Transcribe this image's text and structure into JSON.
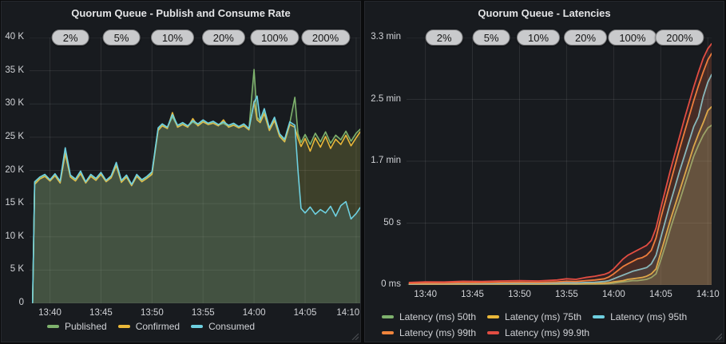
{
  "chart_data": [
    {
      "type": "line",
      "title": "Quorum Queue - Publish and Consume Rate",
      "xlabel": "",
      "ylabel": "",
      "xlim": [
        -2,
        30.4
      ],
      "ylim": [
        0,
        40000
      ],
      "grid": true,
      "legend_position": "bottom",
      "legend_rows": [
        [
          0,
          1,
          2
        ]
      ],
      "fill_opacity": 0.13,
      "line_width": 1.6,
      "x_ticks": [
        {
          "t": 0,
          "label": "13:40"
        },
        {
          "t": 5,
          "label": "13:45"
        },
        {
          "t": 10,
          "label": "13:50"
        },
        {
          "t": 15,
          "label": "13:55"
        },
        {
          "t": 20,
          "label": "14:00"
        },
        {
          "t": 25,
          "label": "14:05"
        },
        {
          "t": 30,
          "label": "14:10"
        }
      ],
      "y_ticks": [
        {
          "v": 0,
          "label": "0"
        },
        {
          "v": 5000,
          "label": "5 K"
        },
        {
          "v": 10000,
          "label": "10 K"
        },
        {
          "v": 15000,
          "label": "15 K"
        },
        {
          "v": 20000,
          "label": "20 K"
        },
        {
          "v": 25000,
          "label": "25 K"
        },
        {
          "v": 30000,
          "label": "30 K"
        },
        {
          "v": 35000,
          "label": "35 K"
        },
        {
          "v": 40000,
          "label": "40 K"
        }
      ],
      "annotations": [
        {
          "t": 2,
          "label": "2%"
        },
        {
          "t": 7,
          "label": "5%"
        },
        {
          "t": 12,
          "label": "10%"
        },
        {
          "t": 17,
          "label": "20%"
        },
        {
          "t": 22,
          "label": "100%"
        },
        {
          "t": 27,
          "label": "200%"
        }
      ],
      "x": [
        -1.7,
        -1.5,
        -1,
        -0.5,
        0,
        0.5,
        1,
        1.5,
        2,
        2.5,
        3,
        3.5,
        4,
        4.5,
        5,
        5.5,
        6,
        6.5,
        7,
        7.5,
        8,
        8.5,
        9,
        9.5,
        10,
        10.3,
        10.6,
        11,
        11.5,
        12,
        12.5,
        13,
        13.5,
        14,
        14.5,
        15,
        15.5,
        16,
        16.5,
        17,
        17.5,
        18,
        18.5,
        19,
        19.5,
        20,
        20.3,
        20.6,
        21,
        21.5,
        22,
        22.5,
        23,
        23.5,
        24,
        24.3,
        24.6,
        25,
        25.5,
        26,
        26.5,
        27,
        27.5,
        28,
        28.5,
        29,
        29.5,
        30,
        30.4
      ],
      "series": [
        {
          "name": "Published",
          "color": "#7EB26D",
          "values": [
            200,
            18100,
            18800,
            19200,
            18500,
            19300,
            18200,
            22800,
            19100,
            18500,
            19600,
            18200,
            19200,
            18600,
            19500,
            18400,
            19000,
            20900,
            18300,
            19100,
            17800,
            19200,
            18400,
            18900,
            19600,
            23200,
            26200,
            26800,
            26400,
            28100,
            26600,
            27000,
            26600,
            27300,
            26800,
            27400,
            27000,
            27200,
            26800,
            27100,
            26600,
            26900,
            26500,
            26800,
            26200,
            35200,
            28000,
            27400,
            28800,
            26200,
            27700,
            25300,
            24500,
            27100,
            31000,
            25500,
            24200,
            25400,
            23900,
            25600,
            24300,
            25800,
            24100,
            25300,
            24600,
            25900,
            24400,
            25600,
            26200
          ]
        },
        {
          "name": "Confirmed",
          "color": "#EAB839",
          "values": [
            0,
            17900,
            18700,
            19100,
            18400,
            19200,
            18100,
            22500,
            19000,
            18400,
            19500,
            18100,
            19100,
            18500,
            19400,
            18300,
            18900,
            20700,
            18200,
            19000,
            17700,
            19100,
            18300,
            18800,
            19400,
            22800,
            26000,
            26700,
            26300,
            28700,
            26500,
            26900,
            26500,
            27800,
            26700,
            27300,
            26900,
            27100,
            26700,
            27600,
            26500,
            26800,
            26400,
            26700,
            26100,
            30400,
            27600,
            27200,
            28500,
            26000,
            27500,
            25100,
            24300,
            26900,
            26500,
            24800,
            23600,
            24800,
            22900,
            24900,
            23500,
            25100,
            23300,
            24700,
            23900,
            25300,
            23700,
            24900,
            25800
          ]
        },
        {
          "name": "Consumed",
          "color": "#6ED0E0",
          "values": [
            100,
            18300,
            19000,
            19400,
            18600,
            19500,
            18400,
            23400,
            19300,
            18700,
            19900,
            18300,
            19400,
            18800,
            19700,
            18500,
            19200,
            21200,
            18500,
            19300,
            17900,
            19400,
            18600,
            19100,
            19800,
            23000,
            26400,
            27000,
            26500,
            28400,
            26800,
            27200,
            26700,
            27500,
            27000,
            27600,
            27100,
            27400,
            26900,
            27300,
            26800,
            27100,
            26600,
            27000,
            26300,
            30200,
            31200,
            27600,
            29300,
            26400,
            28000,
            25500,
            24700,
            27300,
            26800,
            20000,
            14300,
            13600,
            14500,
            13400,
            14100,
            13600,
            14600,
            13100,
            14700,
            15300,
            12700,
            13500,
            14400
          ]
        }
      ]
    },
    {
      "type": "line",
      "title": "Quorum Queue - Latencies",
      "xlabel": "",
      "ylabel": "",
      "xlim": [
        -2,
        30.4
      ],
      "ylim": [
        0,
        200
      ],
      "grid": true,
      "legend_position": "bottom",
      "legend_rows": [
        [
          0,
          1,
          2
        ],
        [
          3,
          4
        ]
      ],
      "fill_opacity": 0.12,
      "line_width": 1.8,
      "x_ticks": [
        {
          "t": 0,
          "label": "13:40"
        },
        {
          "t": 5,
          "label": "13:45"
        },
        {
          "t": 10,
          "label": "13:50"
        },
        {
          "t": 15,
          "label": "13:55"
        },
        {
          "t": 20,
          "label": "14:00"
        },
        {
          "t": 25,
          "label": "14:05"
        },
        {
          "t": 30,
          "label": "14:10"
        }
      ],
      "y_ticks": [
        {
          "v": 0,
          "label": "0 ms"
        },
        {
          "v": 50,
          "label": "50 s"
        },
        {
          "v": 100,
          "label": "1.7 min"
        },
        {
          "v": 150,
          "label": "2.5 min"
        },
        {
          "v": 200,
          "label": "3.3 min"
        }
      ],
      "annotations": [
        {
          "t": 2,
          "label": "2%"
        },
        {
          "t": 7,
          "label": "5%"
        },
        {
          "t": 12,
          "label": "10%"
        },
        {
          "t": 17,
          "label": "20%"
        },
        {
          "t": 22,
          "label": "100%"
        },
        {
          "t": 27,
          "label": "200%"
        }
      ],
      "x": [
        -1.7,
        0,
        2,
        4,
        6,
        8,
        10,
        12,
        14,
        15,
        16,
        17,
        18,
        19,
        19.5,
        20,
        20.5,
        21,
        21.5,
        22,
        22.5,
        23,
        23.5,
        24,
        24.5,
        25,
        25.5,
        26,
        26.5,
        27,
        27.5,
        28,
        28.5,
        29,
        29.5,
        30,
        30.4
      ],
      "series": [
        {
          "name": "Latency (ms) 50th",
          "color": "#7EB26D",
          "values": [
            0.3,
            0.4,
            0.4,
            0.5,
            0.4,
            0.5,
            0.6,
            0.5,
            0.6,
            0.7,
            0.6,
            0.8,
            0.7,
            0.9,
            1.0,
            1.5,
            2.0,
            2.5,
            3.0,
            3.5,
            3.5,
            4.0,
            4.5,
            6.0,
            9.0,
            20,
            32,
            45,
            57,
            68,
            80,
            92,
            104,
            113,
            121,
            127,
            129
          ]
        },
        {
          "name": "Latency (ms) 75th",
          "color": "#EAB839",
          "values": [
            0.5,
            0.6,
            0.6,
            0.8,
            0.7,
            0.8,
            0.9,
            0.8,
            1.0,
            1.1,
            1.0,
            1.2,
            1.2,
            1.5,
            1.8,
            2.5,
            3.0,
            3.5,
            4.5,
            5.0,
            5.5,
            6.0,
            7.0,
            9.0,
            13,
            26,
            39,
            52,
            64,
            76,
            88,
            100,
            112,
            122,
            131,
            141,
            144
          ]
        },
        {
          "name": "Latency (ms) 95th",
          "color": "#6ED0E0",
          "values": [
            0.8,
            1.0,
            1.0,
            1.2,
            1.1,
            1.3,
            1.4,
            1.3,
            1.6,
            1.8,
            1.7,
            2.0,
            2.2,
            2.8,
            3.5,
            5,
            6.5,
            8,
            9.5,
            11,
            12,
            13,
            14,
            17,
            24,
            38,
            52,
            66,
            79,
            92,
            104,
            116,
            128,
            136,
            152,
            164,
            170
          ]
        },
        {
          "name": "Latency (ms) 99th",
          "color": "#EF843C",
          "values": [
            1.2,
            1.5,
            1.5,
            1.8,
            1.7,
            2.0,
            2.2,
            2.0,
            2.5,
            3.0,
            2.8,
            3.5,
            4.0,
            5.0,
            6.5,
            9,
            12,
            15,
            17,
            19,
            21,
            22,
            24,
            28,
            38,
            54,
            68,
            82,
            96,
            110,
            123,
            136,
            149,
            161,
            172,
            182,
            187
          ]
        },
        {
          "name": "Latency (ms) 99.9th",
          "color": "#E24D42",
          "values": [
            2.0,
            2.5,
            2.4,
            3.0,
            2.8,
            3.2,
            3.5,
            3.2,
            4.0,
            5.0,
            4.5,
            6.0,
            7.0,
            8.5,
            10,
            13,
            17,
            21,
            24,
            26,
            28,
            30,
            32,
            36,
            46,
            62,
            77,
            92,
            106,
            120,
            134,
            147,
            160,
            172,
            183,
            191,
            195
          ]
        }
      ]
    }
  ]
}
